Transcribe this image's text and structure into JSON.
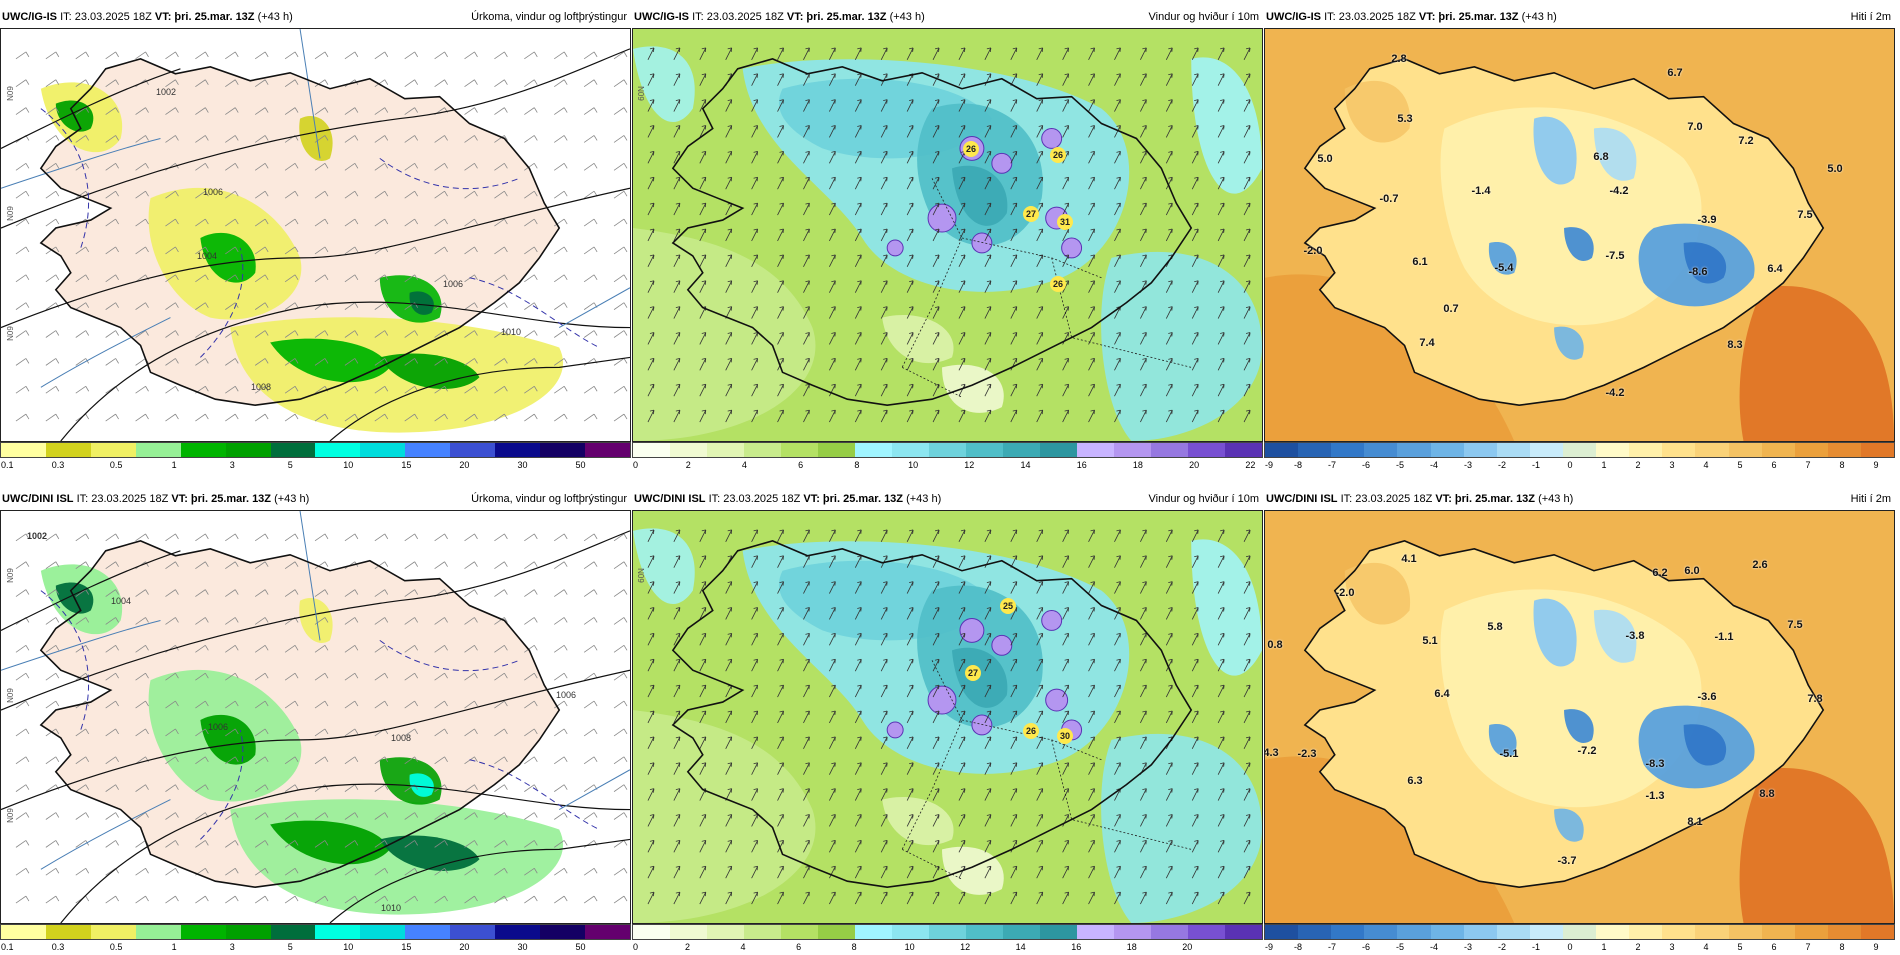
{
  "colors": {
    "precip": [
      "#ffffa0",
      "#d2d21e",
      "#f0f064",
      "#96f096",
      "#00b400",
      "#00a000",
      "#006e3c",
      "#00ffe1",
      "#00dcdc",
      "#4682ff",
      "#3c50d2",
      "#0a0a8c",
      "#140064",
      "#64006e",
      "#8c0a8c",
      "#ff148c",
      "#ff1450",
      "#ff0000"
    ],
    "wind": [
      "#fafff0",
      "#f0fad2",
      "#e1f5b4",
      "#c8eb8c",
      "#b4e164",
      "#96cd46",
      "#a0f5ff",
      "#8ce6f0",
      "#6ed2dc",
      "#50bec8",
      "#3caab4",
      "#2d96a0",
      "#c8b4ff",
      "#b496f0",
      "#9678e1",
      "#7850d2",
      "#5a32b4"
    ],
    "temp": [
      "#1e50a0",
      "#2864b4",
      "#3278c8",
      "#468cd2",
      "#5aa0dc",
      "#6eb4e6",
      "#8cc8f0",
      "#aadcf5",
      "#c8ebfa",
      "#dceed2",
      "#fffac8",
      "#fff0aa",
      "#ffe18c",
      "#fad278",
      "#f5c364",
      "#f0b450",
      "#eba03c",
      "#e68c32",
      "#e17828",
      "#dc641e",
      "#d2501e",
      "#c83c14"
    ]
  },
  "panels": [
    {
      "model": "UWC/IG-IS",
      "issue": "IT: 23.03.2025 18Z",
      "vt_label": "VT:",
      "valid": "þri. 25.mar. 13Z",
      "lead": "(+43 h)",
      "title": "Úrkoma, vindur og loftþrýstingur",
      "ticks": [
        "0.1",
        "0.3",
        "0.5",
        "1",
        "3",
        "5",
        "10",
        "15",
        "20",
        "30",
        "50"
      ],
      "values": [],
      "pressure": [
        "1002",
        "1004",
        "1006",
        "1006",
        "1008",
        "1010"
      ],
      "edge": [
        "N09",
        "N09",
        "N09"
      ]
    },
    {
      "model": "UWC/IG-IS",
      "issue": "IT: 23.03.2025 18Z",
      "vt_label": "VT:",
      "valid": "þri. 25.mar. 13Z",
      "lead": "(+43 h)",
      "title": "Vindur og hviður í 10m",
      "ticks": [
        "0",
        "2",
        "4",
        "6",
        "8",
        "10",
        "12",
        "14",
        "16",
        "18",
        "20",
        "22"
      ],
      "values": [
        "26",
        "26",
        "27",
        "31",
        "26"
      ],
      "pressure": [],
      "edge": [
        "N09"
      ]
    },
    {
      "model": "UWC/IG-IS",
      "issue": "IT: 23.03.2025 18Z",
      "vt_label": "VT:",
      "valid": "þri. 25.mar. 13Z",
      "lead": "(+43 h)",
      "title": "Hiti í 2m",
      "ticks": [
        "-9",
        "-8",
        "-7",
        "-6",
        "-5",
        "-4",
        "-3",
        "-2",
        "-1",
        "0",
        "1",
        "2",
        "3",
        "4",
        "5",
        "6",
        "7",
        "8",
        "9"
      ],
      "values": [
        "2.8",
        "6.7",
        "5.3",
        "7.0",
        "5.0",
        "7.2",
        "5.0",
        "6.8",
        "-1.4",
        "-4.2",
        "-0.7",
        "7.5",
        "-3.9",
        "-2.0",
        "-7.5",
        "6.1",
        "-5.4",
        "-8.6",
        "6.4",
        "0.7",
        "7.4",
        "8.3",
        "-4.2"
      ],
      "pressure": [],
      "edge": []
    },
    {
      "model": "UWC/DINI ISL",
      "issue": "IT: 23.03.2025 18Z",
      "vt_label": "VT:",
      "valid": "þri. 25.mar. 13Z",
      "lead": "(+43 h)",
      "title": "Úrkoma, vindur og loftþrýstingur",
      "ticks": [
        "0.1",
        "0.3",
        "0.5",
        "1",
        "3",
        "5",
        "10",
        "15",
        "20",
        "30",
        "50"
      ],
      "values": [],
      "pressure": [
        "1002",
        "1004",
        "1006",
        "1006",
        "1008",
        "1010"
      ],
      "edge": [
        "N09",
        "N09",
        "N09"
      ]
    },
    {
      "model": "UWC/DINI ISL",
      "issue": "IT: 23.03.2025 18Z",
      "vt_label": "VT:",
      "valid": "þri. 25.mar. 13Z",
      "lead": "(+43 h)",
      "title": "Vindur og hviður í 10m",
      "ticks": [
        "0",
        "2",
        "4",
        "6",
        "8",
        "10",
        "12",
        "14",
        "16",
        "18",
        "20"
      ],
      "values": [
        "25",
        "27",
        "26",
        "30"
      ],
      "pressure": [],
      "edge": [
        "N09"
      ]
    },
    {
      "model": "UWC/DINI ISL",
      "issue": "IT: 23.03.2025 18Z",
      "vt_label": "VT:",
      "valid": "þri. 25.mar. 13Z",
      "lead": "(+43 h)",
      "title": "Hiti í 2m",
      "ticks": [
        "-9",
        "-8",
        "-7",
        "-6",
        "-5",
        "-4",
        "-3",
        "-2",
        "-1",
        "0",
        "1",
        "2",
        "3",
        "4",
        "5",
        "6",
        "7",
        "8",
        "9"
      ],
      "values": [
        "4.1",
        "6.2",
        "6.0",
        "2.6",
        "-2.0",
        "5.8",
        "-3.8",
        "-1.1",
        "7.5",
        "0.8",
        "5.1",
        "6.4",
        "-3.6",
        "7.8",
        "4.3",
        "-2.3",
        "-5.1",
        "-7.2",
        "-8.3",
        "6.3",
        "-1.3",
        "8.8",
        "8.1",
        "-3.7"
      ],
      "pressure": [],
      "edge": []
    }
  ]
}
